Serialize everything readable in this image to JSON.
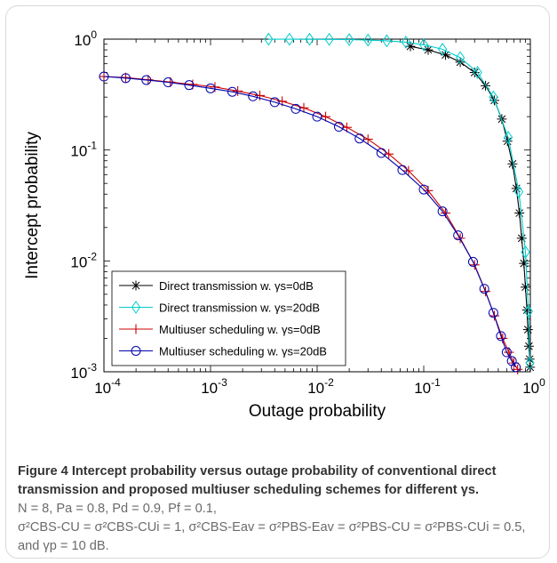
{
  "chart_data": {
    "type": "line",
    "xlabel": "Outage probability",
    "ylabel": "Intercept probability",
    "xscale": "log",
    "yscale": "log",
    "xlim": [
      0.0001,
      1
    ],
    "ylim": [
      0.001,
      1
    ],
    "x_ticks": [
      "10^-4",
      "10^-3",
      "10^-2",
      "10^-1",
      "10^0"
    ],
    "y_ticks": [
      "10^-3",
      "10^-2",
      "10^-1",
      "10^0"
    ],
    "legend_position": "bottom-left",
    "grid": false,
    "series": [
      {
        "name": "Direct transmission w. γs=0dB",
        "color": "#000000",
        "marker": "star",
        "x": [
          0.075,
          0.11,
          0.16,
          0.22,
          0.3,
          0.38,
          0.46,
          0.54,
          0.61,
          0.68,
          0.74,
          0.79,
          0.83,
          0.87,
          0.9,
          0.93,
          0.95,
          0.97,
          0.985,
          0.995
        ],
        "y": [
          0.86,
          0.8,
          0.72,
          0.62,
          0.5,
          0.38,
          0.28,
          0.19,
          0.12,
          0.075,
          0.045,
          0.027,
          0.016,
          0.0095,
          0.0058,
          0.0036,
          0.0024,
          0.0017,
          0.0013,
          0.0011
        ]
      },
      {
        "name": "Direct transmission w. γs=20dB",
        "color": "#00cccc",
        "marker": "diamond",
        "x": [
          0.0035,
          0.0055,
          0.0085,
          0.013,
          0.02,
          0.03,
          0.045,
          0.068,
          0.1,
          0.15,
          0.22,
          0.32,
          0.45,
          0.62,
          0.78,
          0.9,
          0.96,
          0.99
        ],
        "y": [
          0.999,
          0.998,
          0.997,
          0.995,
          0.99,
          0.98,
          0.965,
          0.94,
          0.89,
          0.81,
          0.68,
          0.5,
          0.3,
          0.13,
          0.042,
          0.012,
          0.0035,
          0.0012
        ]
      },
      {
        "name": "Multiuser scheduling w. γs=0dB",
        "color": "#cc0000",
        "marker": "plus",
        "x": [
          0.0001,
          0.00016,
          0.00026,
          0.00042,
          0.00068,
          0.0011,
          0.0018,
          0.0029,
          0.0047,
          0.0075,
          0.012,
          0.019,
          0.03,
          0.047,
          0.072,
          0.11,
          0.16,
          0.22,
          0.3,
          0.38,
          0.46,
          0.55,
          0.63,
          0.7,
          0.76
        ],
        "y": [
          0.46,
          0.45,
          0.43,
          0.41,
          0.39,
          0.37,
          0.34,
          0.31,
          0.275,
          0.24,
          0.2,
          0.16,
          0.125,
          0.092,
          0.065,
          0.043,
          0.027,
          0.016,
          0.0092,
          0.0053,
          0.0032,
          0.002,
          0.0015,
          0.0012,
          0.00105
        ]
      },
      {
        "name": "Multiuser scheduling w. γs=20dB",
        "color": "#0000aa",
        "marker": "circle",
        "x": [
          0.0001,
          0.00016,
          0.00025,
          0.0004,
          0.00063,
          0.001,
          0.0016,
          0.0025,
          0.004,
          0.0063,
          0.01,
          0.016,
          0.025,
          0.04,
          0.063,
          0.1,
          0.15,
          0.21,
          0.29,
          0.37,
          0.45,
          0.53,
          0.6,
          0.67,
          0.73
        ],
        "y": [
          0.46,
          0.445,
          0.428,
          0.408,
          0.385,
          0.36,
          0.335,
          0.305,
          0.27,
          0.235,
          0.2,
          0.162,
          0.127,
          0.094,
          0.066,
          0.044,
          0.028,
          0.017,
          0.0098,
          0.0056,
          0.0034,
          0.0021,
          0.0015,
          0.00125,
          0.0011
        ]
      }
    ]
  },
  "caption": {
    "figure_label": "Figure 4",
    "title_text": "Intercept probability versus outage probability of conventional direct transmission and proposed multiuser scheduling schemes for different γs.",
    "parameters_line1": "N = 8, Pa = 0.8, Pd = 0.9, Pf = 0.1,",
    "parameters_line2": "σ²CBS-CU = σ²CBS-CUi = 1, σ²CBS-Eav = σ²PBS-Eav = σ²PBS-CU = σ²PBS-CUi = 0.5,",
    "parameters_line3": "and γp = 10 dB."
  }
}
